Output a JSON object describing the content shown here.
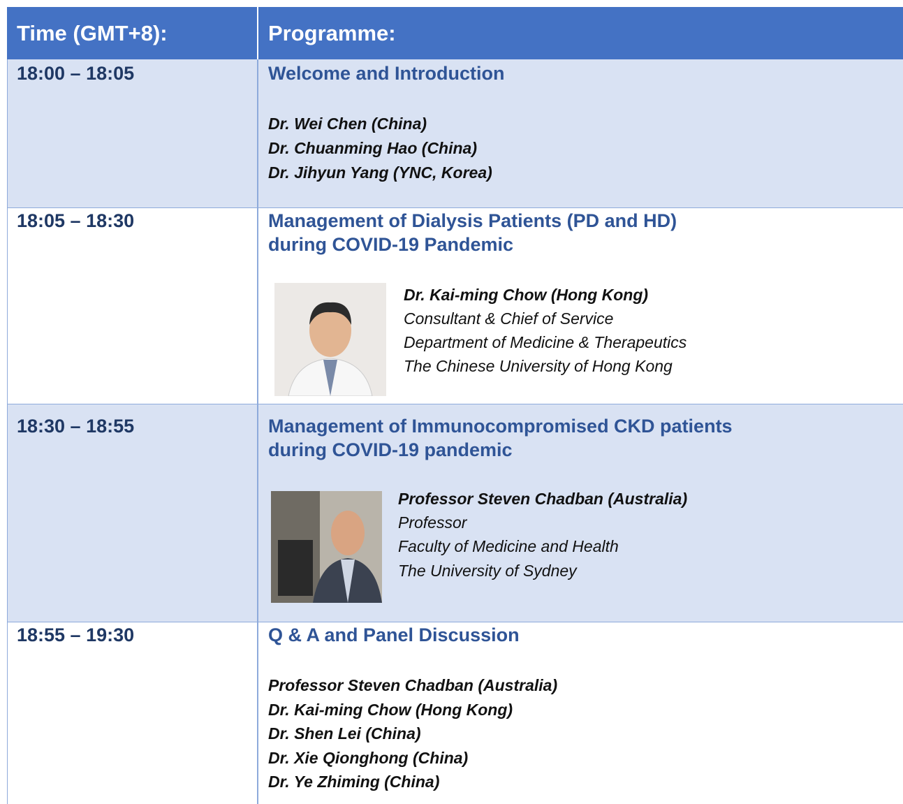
{
  "header": {
    "time": "Time (GMT+8):",
    "programme": "Programme:"
  },
  "rows": [
    {
      "time": "18:00 – 18:05",
      "title": [
        "Welcome and Introduction"
      ],
      "speakers": [
        "Dr. Wei Chen (China)",
        "Dr. Chuanming Hao (China)",
        "Dr. Jihyun Yang (YNC, Korea)"
      ]
    },
    {
      "time": "18:05 – 18:30",
      "title": [
        "Management of Dialysis Patients (PD and HD)",
        "during COVID-19 Pandemic"
      ],
      "speaker": {
        "name": "Dr. Kai-ming Chow (Hong Kong)",
        "lines": [
          "Consultant & Chief of Service",
          "Department of Medicine & Therapeutics",
          "The Chinese University of Hong Kong"
        ]
      }
    },
    {
      "time": "18:30 – 18:55",
      "title": [
        "Management of Immunocompromised CKD patients",
        "during COVID-19 pandemic"
      ],
      "speaker": {
        "name": "Professor Steven Chadban (Australia)",
        "lines": [
          "Professor",
          "Faculty of Medicine and Health",
          "The University of Sydney"
        ]
      }
    },
    {
      "time": "18:55 – 19:30",
      "title": [
        "Q & A and Panel Discussion"
      ],
      "speakers": [
        "Professor Steven Chadban (Australia)",
        "Dr. Kai-ming Chow (Hong Kong)",
        "Dr. Shen Lei (China)",
        "Dr. Xie Qionghong (China)",
        "Dr. Ye Zhiming (China)"
      ]
    }
  ]
}
